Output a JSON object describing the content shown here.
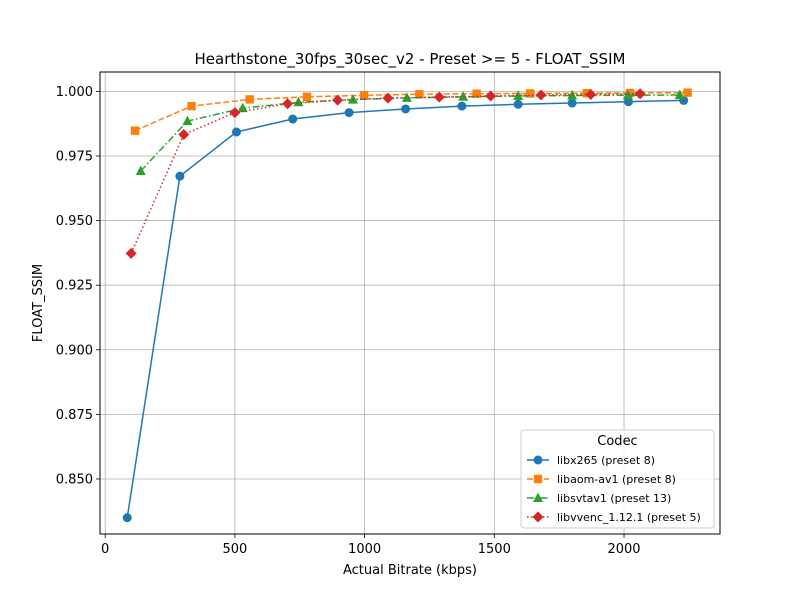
{
  "chart_data": {
    "type": "line",
    "title": "Hearthstone_30fps_30sec_v2 - Preset >= 5 - FLOAT_SSIM",
    "xlabel": "Actual Bitrate (kbps)",
    "ylabel": "FLOAT_SSIM",
    "xlim": [
      -20,
      2370
    ],
    "ylim": [
      0.8287,
      1.0075
    ],
    "xticks": [
      0,
      500,
      1000,
      1500,
      2000
    ],
    "yticks": [
      0.85,
      0.875,
      0.9,
      0.925,
      0.95,
      0.975,
      1.0
    ],
    "xtick_labels": [
      "0",
      "500",
      "1000",
      "1500",
      "2000"
    ],
    "ytick_labels": [
      "0.850",
      "0.875",
      "0.900",
      "0.925",
      "0.950",
      "0.975",
      "1.000"
    ],
    "grid": true,
    "legend": {
      "title": "Codec",
      "placement": "lower-right"
    },
    "series": [
      {
        "name": "libx265 (preset 8)",
        "color": "#1f77b4",
        "marker": "circle",
        "linestyle": "solid",
        "x": [
          85,
          288,
          506,
          723,
          940,
          1158,
          1375,
          1592,
          1800,
          2017,
          2230
        ],
        "y": [
          0.835,
          0.9672,
          0.9843,
          0.9893,
          0.9918,
          0.9932,
          0.9943,
          0.995,
          0.9955,
          0.996,
          0.9965
        ]
      },
      {
        "name": "libaom-av1 (preset 8)",
        "color": "#ff7f0e",
        "marker": "square",
        "linestyle": "dashed",
        "x": [
          115,
          333,
          557,
          778,
          998,
          1211,
          1432,
          1638,
          1857,
          2023,
          2245
        ],
        "y": [
          0.9848,
          0.9943,
          0.9969,
          0.9979,
          0.9985,
          0.9989,
          0.9991,
          0.9992,
          0.9993,
          0.9994,
          0.9995
        ]
      },
      {
        "name": "libsvtav1 (preset 13)",
        "color": "#2ca02c",
        "marker": "triangle",
        "linestyle": "dashdot",
        "x": [
          137,
          317,
          530,
          745,
          955,
          1163,
          1380,
          1592,
          1800,
          2015,
          2215
        ],
        "y": [
          0.9692,
          0.9885,
          0.9935,
          0.9958,
          0.9968,
          0.9975,
          0.9979,
          0.9982,
          0.9984,
          0.9985,
          0.9986
        ]
      },
      {
        "name": "libvvenc_1.12.1 (preset 5)",
        "color": "#d62728",
        "marker": "diamond",
        "linestyle": "dotted",
        "x": [
          100,
          303,
          500,
          703,
          896,
          1090,
          1288,
          1486,
          1680,
          1872,
          2062
        ],
        "y": [
          0.9373,
          0.9833,
          0.9918,
          0.9952,
          0.9966,
          0.9974,
          0.9978,
          0.9982,
          0.9986,
          0.9988,
          0.9991
        ]
      }
    ]
  }
}
